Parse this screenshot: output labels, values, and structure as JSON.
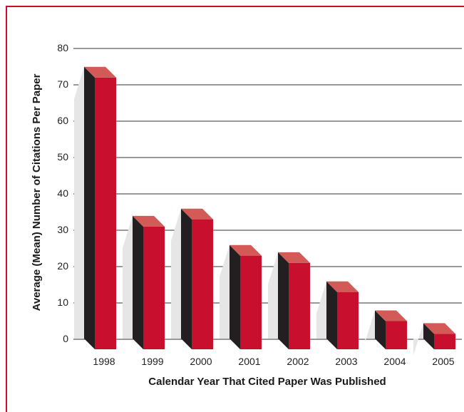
{
  "chart_data": {
    "type": "bar",
    "title": "",
    "xlabel": "Calendar Year That Cited Paper Was Published",
    "ylabel": "Average (Mean) Number of Citations Per Paper",
    "categories": [
      "1998",
      "1999",
      "2000",
      "2001",
      "2002",
      "2003",
      "2004",
      "2005"
    ],
    "values": [
      72,
      31,
      33,
      23,
      21,
      13,
      5,
      1.5
    ],
    "ylim": [
      0,
      80
    ],
    "yticks": [
      0,
      10,
      20,
      30,
      40,
      50,
      60,
      70,
      80
    ],
    "grid": true,
    "legend": "none",
    "colors": {
      "front": "#c8102e",
      "top": "#d35a57",
      "side": "#231f20",
      "shadow": "#e6e6e6",
      "border": "#c8102e",
      "grid": "#333333"
    }
  }
}
